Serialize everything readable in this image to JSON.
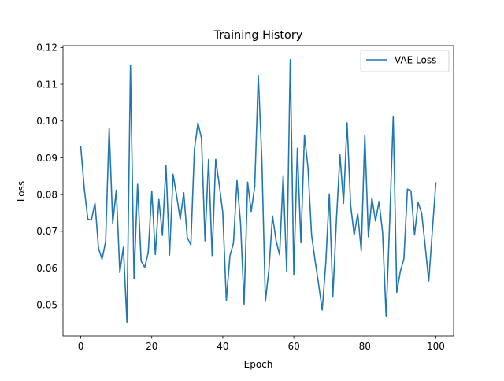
{
  "chart_data": {
    "type": "line",
    "title": "Training History",
    "xlabel": "Epoch",
    "ylabel": "Loss",
    "xlim": [
      -5,
      105
    ],
    "ylim": [
      0.0415,
      0.1205
    ],
    "xticks": [
      0,
      20,
      40,
      60,
      80,
      100
    ],
    "xtick_labels": [
      "0",
      "20",
      "40",
      "60",
      "80",
      "100"
    ],
    "yticks": [
      0.05,
      0.06,
      0.07,
      0.08,
      0.09,
      0.1,
      0.11,
      0.12
    ],
    "ytick_labels": [
      "0.05",
      "0.06",
      "0.07",
      "0.08",
      "0.09",
      "0.10",
      "0.11",
      "0.12"
    ],
    "grid": false,
    "legend_position": "top-right",
    "series": [
      {
        "name": "VAE Loss",
        "color": "#1f77b4",
        "x": [
          0,
          1,
          2,
          3,
          4,
          5,
          6,
          7,
          8,
          9,
          10,
          11,
          12,
          13,
          14,
          15,
          16,
          17,
          18,
          19,
          20,
          21,
          22,
          23,
          24,
          25,
          26,
          27,
          28,
          29,
          30,
          31,
          32,
          33,
          34,
          35,
          36,
          37,
          38,
          39,
          40,
          41,
          42,
          43,
          44,
          45,
          46,
          47,
          48,
          49,
          50,
          51,
          52,
          53,
          54,
          55,
          56,
          57,
          58,
          59,
          60,
          61,
          62,
          63,
          64,
          65,
          66,
          67,
          68,
          69,
          70,
          71,
          72,
          73,
          74,
          75,
          76,
          77,
          78,
          79,
          80,
          81,
          82,
          83,
          84,
          85,
          86,
          87,
          88,
          89,
          90,
          91,
          92,
          93,
          94,
          95,
          96,
          97,
          98,
          99,
          100
        ],
        "values": [
          0.093,
          0.0815,
          0.0733,
          0.0731,
          0.0777,
          0.0654,
          0.0624,
          0.0672,
          0.0981,
          0.0722,
          0.0812,
          0.0588,
          0.0657,
          0.0453,
          0.1151,
          0.0571,
          0.0828,
          0.0619,
          0.0602,
          0.0642,
          0.081,
          0.0637,
          0.0787,
          0.0689,
          0.088,
          0.0635,
          0.0855,
          0.0797,
          0.0733,
          0.0805,
          0.0683,
          0.0663,
          0.0922,
          0.0995,
          0.0953,
          0.0674,
          0.0896,
          0.0634,
          0.0896,
          0.0827,
          0.0751,
          0.0511,
          0.0633,
          0.0668,
          0.0838,
          0.0723,
          0.0502,
          0.0834,
          0.0754,
          0.0823,
          0.1124,
          0.0895,
          0.051,
          0.0597,
          0.0742,
          0.0675,
          0.0636,
          0.0852,
          0.0591,
          0.1167,
          0.0583,
          0.0926,
          0.0669,
          0.0962,
          0.0872,
          0.069,
          0.062,
          0.0555,
          0.0486,
          0.0613,
          0.0802,
          0.0523,
          0.073,
          0.0908,
          0.0776,
          0.0995,
          0.0771,
          0.069,
          0.0748,
          0.0647,
          0.0962,
          0.0685,
          0.0791,
          0.0728,
          0.0781,
          0.0697,
          0.0468,
          0.0727,
          0.1013,
          0.0534,
          0.0591,
          0.0625,
          0.0815,
          0.081,
          0.069,
          0.0778,
          0.075,
          0.066,
          0.0565,
          0.07,
          0.0832
        ]
      }
    ]
  }
}
